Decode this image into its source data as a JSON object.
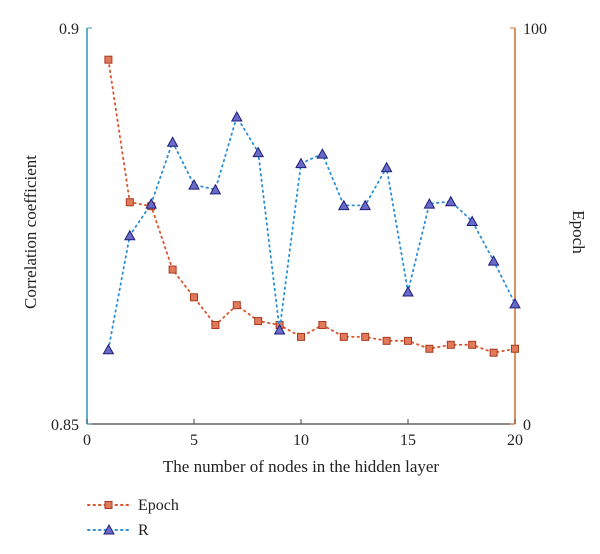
{
  "chart_data": {
    "type": "line",
    "xlabel": "The number of nodes in the hidden layer",
    "ylabel_left": "Correlation coefficient",
    "ylabel_right": "Epoch",
    "xlim": [
      0,
      20
    ],
    "ylim_left": [
      0.85,
      0.9
    ],
    "ylim_right": [
      0,
      100
    ],
    "x_ticks": [
      0,
      5,
      10,
      15,
      20
    ],
    "y_left_ticks": [
      0.85,
      0.9
    ],
    "y_right_ticks": [
      0,
      100
    ],
    "legend_position": "bottom-left",
    "grid": false,
    "x": [
      1,
      2,
      3,
      4,
      5,
      6,
      7,
      8,
      9,
      10,
      11,
      12,
      13,
      14,
      15,
      16,
      17,
      18,
      19,
      20
    ],
    "series": [
      {
        "name": "Epoch",
        "axis": "right",
        "marker": "square",
        "color": "#d9532b",
        "marker_fill": "#e07a5a",
        "values": [
          92,
          56,
          55,
          39,
          32,
          25,
          30,
          26,
          25,
          22,
          25,
          22,
          22,
          21,
          21,
          19,
          20,
          20,
          18,
          19
        ]
      },
      {
        "name": "R",
        "axis": "left",
        "marker": "triangle",
        "color": "#2a8fd6",
        "marker_fill": "#6a6ac8",
        "values": [
          0.8594,
          0.8738,
          0.8778,
          0.8856,
          0.8802,
          0.8796,
          0.8888,
          0.8843,
          0.8619,
          0.8829,
          0.8841,
          0.8776,
          0.8776,
          0.8824,
          0.8667,
          0.8778,
          0.8781,
          0.8756,
          0.8706,
          0.8652
        ]
      }
    ]
  },
  "colors": {
    "left_axis": "#3a9bbf",
    "right_axis": "#d9733a",
    "bottom_axis": "#444444"
  }
}
